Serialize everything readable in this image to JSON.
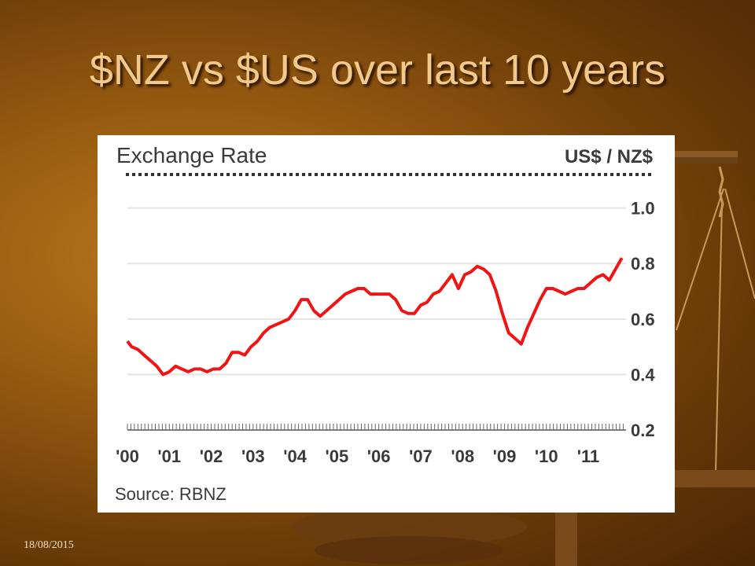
{
  "slide": {
    "title": "$NZ vs $US over last 10 years",
    "footer_date": "18/08/2015"
  },
  "colors": {
    "line": "#f01414",
    "text": "#3a3a3a",
    "grid": "#e4e4e4",
    "slide_title": "#f2c98a"
  },
  "chart_data": {
    "type": "line",
    "title": "Exchange Rate",
    "unit_label": "US$ / NZ$",
    "source": "Source: RBNZ",
    "ylim": [
      0.2,
      1.05
    ],
    "y_ticks": [
      0.2,
      0.4,
      0.6,
      0.8,
      1.0
    ],
    "y_tick_labels": [
      "0.2",
      "0.4",
      "0.6",
      "0.8",
      "1.0"
    ],
    "xlim": [
      2000.0,
      2011.9
    ],
    "x_tick_labels": [
      {
        "x": 2000.0,
        "label": "'00"
      },
      {
        "x": 2001.0,
        "label": "'01"
      },
      {
        "x": 2002.0,
        "label": "'02"
      },
      {
        "x": 2003.0,
        "label": "'03"
      },
      {
        "x": 2004.0,
        "label": "'04"
      },
      {
        "x": 2005.0,
        "label": "'05"
      },
      {
        "x": 2006.0,
        "label": "'06"
      },
      {
        "x": 2007.0,
        "label": "'07"
      },
      {
        "x": 2008.0,
        "label": "'08"
      },
      {
        "x": 2009.0,
        "label": "'09"
      },
      {
        "x": 2010.0,
        "label": "'10"
      },
      {
        "x": 2011.0,
        "label": "'11"
      }
    ],
    "grid": true,
    "series": [
      {
        "x": [
          2000.0,
          2000.1,
          2000.25,
          2000.4,
          2000.55,
          2000.7,
          2000.85,
          2001.0,
          2001.15,
          2001.3,
          2001.45,
          2001.6,
          2001.75,
          2001.9,
          2002.05,
          2002.2,
          2002.35,
          2002.5,
          2002.65,
          2002.8,
          2002.95,
          2003.1,
          2003.25,
          2003.4,
          2003.55,
          2003.7,
          2003.85,
          2004.0,
          2004.15,
          2004.3,
          2004.45,
          2004.6,
          2004.75,
          2004.9,
          2005.05,
          2005.2,
          2005.35,
          2005.5,
          2005.65,
          2005.8,
          2005.95,
          2006.1,
          2006.25,
          2006.4,
          2006.55,
          2006.7,
          2006.85,
          2007.0,
          2007.15,
          2007.3,
          2007.45,
          2007.6,
          2007.75,
          2007.9,
          2008.05,
          2008.2,
          2008.35,
          2008.5,
          2008.65,
          2008.8,
          2008.95,
          2009.1,
          2009.25,
          2009.4,
          2009.55,
          2009.7,
          2009.85,
          2010.0,
          2010.15,
          2010.3,
          2010.45,
          2010.6,
          2010.75,
          2010.9,
          2011.05,
          2011.2,
          2011.35,
          2011.5,
          2011.65,
          2011.8
        ],
        "y": [
          0.52,
          0.5,
          0.49,
          0.47,
          0.45,
          0.43,
          0.4,
          0.41,
          0.43,
          0.42,
          0.41,
          0.42,
          0.42,
          0.41,
          0.42,
          0.42,
          0.44,
          0.48,
          0.48,
          0.47,
          0.5,
          0.52,
          0.55,
          0.57,
          0.58,
          0.59,
          0.6,
          0.63,
          0.67,
          0.67,
          0.63,
          0.61,
          0.63,
          0.65,
          0.67,
          0.69,
          0.7,
          0.71,
          0.71,
          0.69,
          0.69,
          0.69,
          0.69,
          0.67,
          0.63,
          0.62,
          0.62,
          0.65,
          0.66,
          0.69,
          0.7,
          0.73,
          0.76,
          0.71,
          0.76,
          0.77,
          0.79,
          0.78,
          0.76,
          0.7,
          0.62,
          0.55,
          0.53,
          0.51,
          0.57,
          0.62,
          0.67,
          0.71,
          0.71,
          0.7,
          0.69,
          0.7,
          0.71,
          0.71,
          0.73,
          0.75,
          0.76,
          0.74,
          0.78,
          0.82
        ]
      }
    ]
  }
}
